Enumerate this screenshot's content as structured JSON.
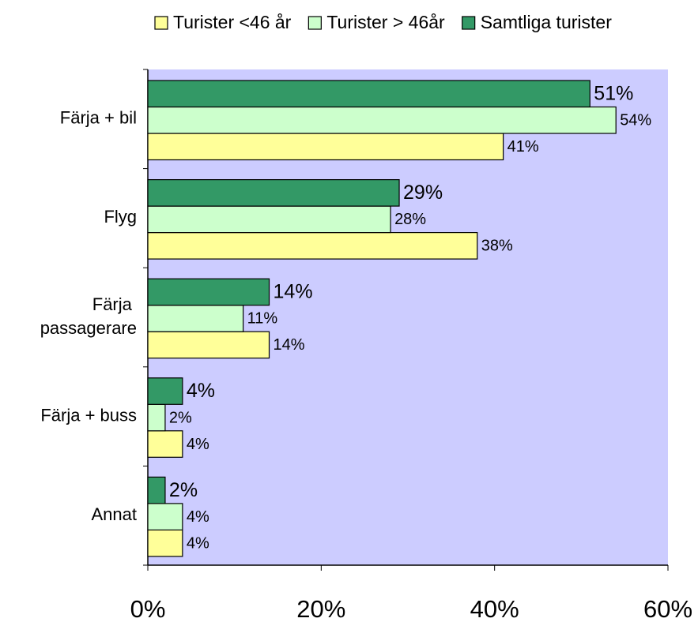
{
  "chart_data": {
    "type": "bar",
    "orientation": "horizontal",
    "categories": [
      "Färja + bil",
      "Flyg",
      "Färja passagerare",
      "Färja + buss",
      "Annat"
    ],
    "series": [
      {
        "name": "Turister <46 år",
        "color": "#ffff99",
        "values": [
          41,
          38,
          14,
          4,
          4
        ],
        "value_labels": [
          "41%",
          "38%",
          "14%",
          "4%",
          "4%"
        ]
      },
      {
        "name": "Turister > 46år",
        "color": "#ccffcc",
        "values": [
          54,
          28,
          11,
          2,
          4
        ],
        "value_labels": [
          "54%",
          "28%",
          "11%",
          "2%",
          "4%"
        ]
      },
      {
        "name": "Samtliga turister",
        "color": "#339966",
        "values": [
          51,
          29,
          14,
          4,
          2
        ],
        "value_labels": [
          "51%",
          "29%",
          "14%",
          "4%",
          "2%"
        ]
      }
    ],
    "xlim": [
      0,
      60
    ],
    "xticks": [
      {
        "value": 0,
        "label": "0%"
      },
      {
        "value": 20,
        "label": "20%"
      },
      {
        "value": 40,
        "label": "40%"
      },
      {
        "value": 60,
        "label": "60%"
      }
    ],
    "plot_background": "#ccccff",
    "legend": "top"
  }
}
